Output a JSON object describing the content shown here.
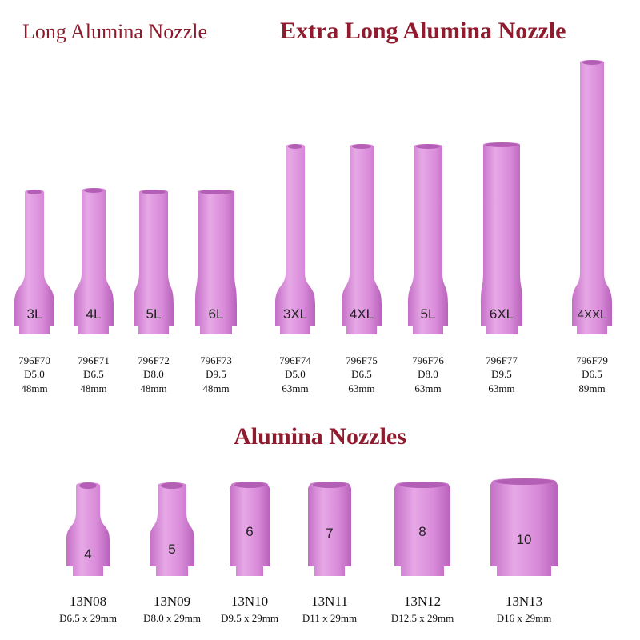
{
  "headings": {
    "long": "Long Alumina Nozzle",
    "extra_long": "Extra Long Alumina Nozzle",
    "standard": "Alumina Nozzles"
  },
  "top_nozzles": [
    {
      "marking": "3L",
      "part": "796F70",
      "diameter": "D5.0",
      "length": "48mm"
    },
    {
      "marking": "4L",
      "part": "796F71",
      "diameter": "D6.5",
      "length": "48mm"
    },
    {
      "marking": "5L",
      "part": "796F72",
      "diameter": "D8.0",
      "length": "48mm"
    },
    {
      "marking": "6L",
      "part": "796F73",
      "diameter": "D9.5",
      "length": "48mm"
    },
    {
      "marking": "3XL",
      "part": "796F74",
      "diameter": "D5.0",
      "length": "63mm"
    },
    {
      "marking": "4XL",
      "part": "796F75",
      "diameter": "D6.5",
      "length": "63mm"
    },
    {
      "marking": "5L",
      "part": "796F76",
      "diameter": "D8.0",
      "length": "63mm"
    },
    {
      "marking": "6XL",
      "part": "796F77",
      "diameter": "D9.5",
      "length": "63mm"
    },
    {
      "marking": "4XXL",
      "part": "796F79",
      "diameter": "D6.5",
      "length": "89mm"
    }
  ],
  "bottom_nozzles": [
    {
      "marking": "4",
      "part": "13N08",
      "size": "D6.5 x 29mm"
    },
    {
      "marking": "5",
      "part": "13N09",
      "size": "D8.0 x 29mm"
    },
    {
      "marking": "6",
      "part": "13N10",
      "size": "D9.5 x 29mm"
    },
    {
      "marking": "7",
      "part": "13N11",
      "size": "D11 x 29mm"
    },
    {
      "marking": "8",
      "part": "13N12",
      "size": "D12.5 x 29mm"
    },
    {
      "marking": "10",
      "part": "13N13",
      "size": "D16 x 29mm"
    }
  ]
}
